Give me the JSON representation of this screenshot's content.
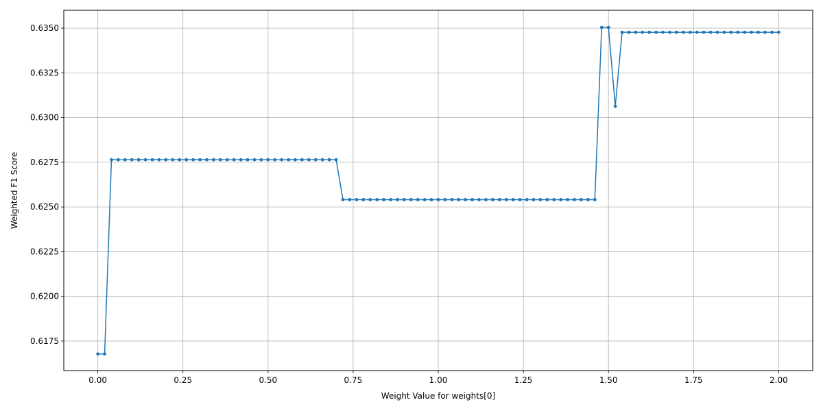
{
  "chart_data": {
    "type": "line",
    "title": "",
    "xlabel": "Weight Value for weights[0]",
    "ylabel": "Weighted F1 Score",
    "xlim": [
      -0.1,
      2.1
    ],
    "ylim": [
      0.61585,
      0.636
    ],
    "xticks": [
      0.0,
      0.25,
      0.5,
      0.75,
      1.0,
      1.25,
      1.5,
      1.75,
      2.0
    ],
    "xtick_labels": [
      "0.00",
      "0.25",
      "0.50",
      "0.75",
      "1.00",
      "1.25",
      "1.50",
      "1.75",
      "2.00"
    ],
    "yticks": [
      0.6175,
      0.62,
      0.6225,
      0.625,
      0.6275,
      0.63,
      0.6325,
      0.635
    ],
    "ytick_labels": [
      "0.6175",
      "0.6200",
      "0.6225",
      "0.6250",
      "0.6275",
      "0.6300",
      "0.6325",
      "0.6350"
    ],
    "grid": true,
    "legend": false,
    "series": [
      {
        "color": "#1f77b4",
        "marker": "circle",
        "x_start": 0.0,
        "x_step": 0.02,
        "values": [
          0.61678,
          0.61678,
          0.62764,
          0.62764,
          0.62764,
          0.62764,
          0.62764,
          0.62764,
          0.62764,
          0.62764,
          0.62764,
          0.62764,
          0.62764,
          0.62764,
          0.62764,
          0.62764,
          0.62764,
          0.62764,
          0.62764,
          0.62764,
          0.62764,
          0.62764,
          0.62764,
          0.62764,
          0.62764,
          0.62764,
          0.62764,
          0.62764,
          0.62764,
          0.62764,
          0.62764,
          0.62764,
          0.62764,
          0.62764,
          0.62764,
          0.62764,
          0.62541,
          0.62541,
          0.62541,
          0.62541,
          0.62541,
          0.62541,
          0.62541,
          0.62541,
          0.62541,
          0.62541,
          0.62541,
          0.62541,
          0.62541,
          0.62541,
          0.62541,
          0.62541,
          0.62541,
          0.62541,
          0.62541,
          0.62541,
          0.62541,
          0.62541,
          0.62541,
          0.62541,
          0.62541,
          0.62541,
          0.62541,
          0.62541,
          0.62541,
          0.62541,
          0.62541,
          0.62541,
          0.62541,
          0.62541,
          0.62541,
          0.62541,
          0.62541,
          0.62541,
          0.63504,
          0.63504,
          0.63063,
          0.63477,
          0.63477,
          0.63477,
          0.63477,
          0.63477,
          0.63477,
          0.63477,
          0.63477,
          0.63477,
          0.63477,
          0.63477,
          0.63477,
          0.63477,
          0.63477,
          0.63477,
          0.63477,
          0.63477,
          0.63477,
          0.63477,
          0.63477,
          0.63477,
          0.63477,
          0.63477,
          0.63477
        ]
      }
    ]
  }
}
